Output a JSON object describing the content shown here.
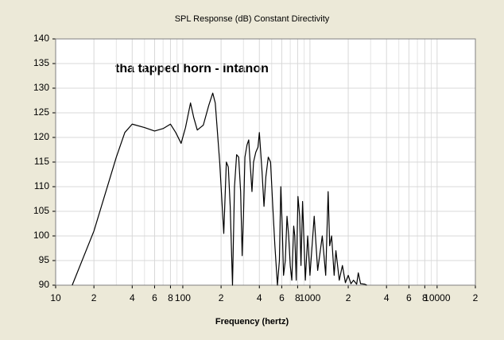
{
  "chart_data": {
    "type": "line",
    "title": "SPL Response (dB)   Constant Directivity",
    "annotation": "tha tapped horn - intanon",
    "x_label": "Frequency (hertz)",
    "log_x": true,
    "grid": true,
    "x": [
      13.5,
      20,
      30,
      35,
      40,
      50,
      60,
      70,
      80,
      88,
      97,
      105,
      115,
      122,
      130,
      145,
      160,
      172,
      180,
      195,
      210,
      220,
      228,
      236,
      246,
      255,
      265,
      275,
      285,
      293,
      300,
      308,
      320,
      330,
      340,
      350,
      360,
      375,
      390,
      400,
      410,
      420,
      435,
      450,
      470,
      490,
      510,
      530,
      555,
      575,
      590,
      605,
      620,
      640,
      660,
      680,
      700,
      720,
      745,
      760,
      780,
      805,
      830,
      850,
      875,
      900,
      920,
      960,
      1000,
      1080,
      1150,
      1250,
      1330,
      1390,
      1430,
      1480,
      1550,
      1600,
      1700,
      1800,
      1900,
      2000,
      2100,
      2200,
      2330,
      2400,
      2500,
      2700,
      2800
    ],
    "series": [
      {
        "color": "#000000",
        "values": [
          90,
          101,
          116,
          121,
          122.7,
          122,
          121.3,
          121.8,
          122.7,
          121,
          118.8,
          122,
          127,
          124,
          121.5,
          122.5,
          126.5,
          129,
          127,
          115,
          100.5,
          115,
          114,
          106,
          90,
          110,
          116.5,
          116,
          109,
          96,
          104,
          116,
          118.5,
          119.5,
          114,
          109,
          115,
          117,
          118,
          121,
          117,
          113,
          106,
          112,
          116,
          115,
          106,
          98,
          90,
          95,
          110,
          102,
          92,
          95,
          104,
          100,
          94,
          91,
          102,
          100,
          91,
          108,
          104,
          94,
          107,
          98,
          91,
          100,
          92,
          104,
          93,
          100,
          92,
          109,
          98,
          100,
          92,
          97,
          91,
          94,
          90.5,
          92,
          90.3,
          91,
          90.2,
          92.5,
          90.3,
          90.2,
          90
        ]
      }
    ],
    "xlim": [
      10,
      20000
    ],
    "ylim": [
      90,
      140
    ],
    "xticks": [
      10,
      {
        "value": 20,
        "label": "2"
      },
      {
        "value": 40,
        "label": "4"
      },
      {
        "value": 60,
        "label": "6"
      },
      {
        "value": 80,
        "label": "8"
      },
      100,
      {
        "value": 200,
        "label": "2"
      },
      {
        "value": 400,
        "label": "4"
      },
      {
        "value": 600,
        "label": "6"
      },
      {
        "value": 800,
        "label": "8"
      },
      1000,
      {
        "value": 2000,
        "label": "2"
      },
      {
        "value": 4000,
        "label": "4"
      },
      {
        "value": 6000,
        "label": "6"
      },
      {
        "value": 8000,
        "label": "8"
      },
      10000,
      {
        "value": 20000,
        "label": "2"
      }
    ],
    "x_minor_ticks": [
      30,
      50,
      70,
      90,
      300,
      500,
      700,
      900,
      3000,
      5000,
      7000,
      9000
    ],
    "yticks": [
      90,
      95,
      100,
      105,
      110,
      115,
      120,
      125,
      130,
      135,
      140
    ]
  }
}
